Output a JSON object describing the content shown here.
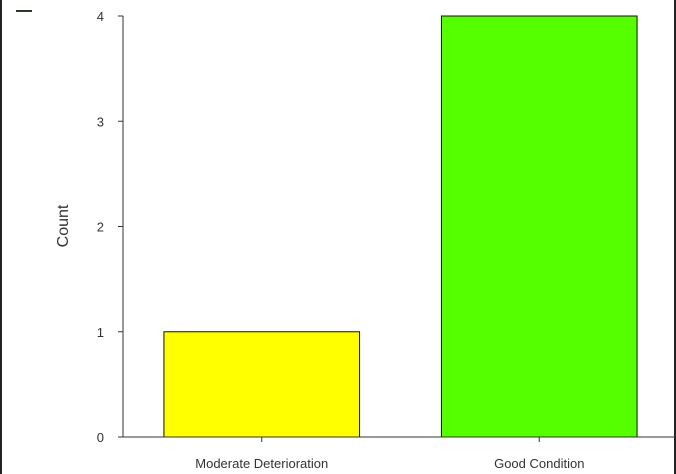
{
  "chart_data": {
    "type": "bar",
    "categories": [
      "Moderate Deterioration",
      "Good Condition"
    ],
    "values": [
      1,
      4
    ],
    "colors": [
      "#ffff00",
      "#55ff00"
    ],
    "ylabel": "Count",
    "xlabel": "",
    "ylim": [
      0,
      4
    ],
    "yticks": [
      0,
      1,
      2,
      3,
      4
    ],
    "grid": false,
    "legend": "none"
  }
}
